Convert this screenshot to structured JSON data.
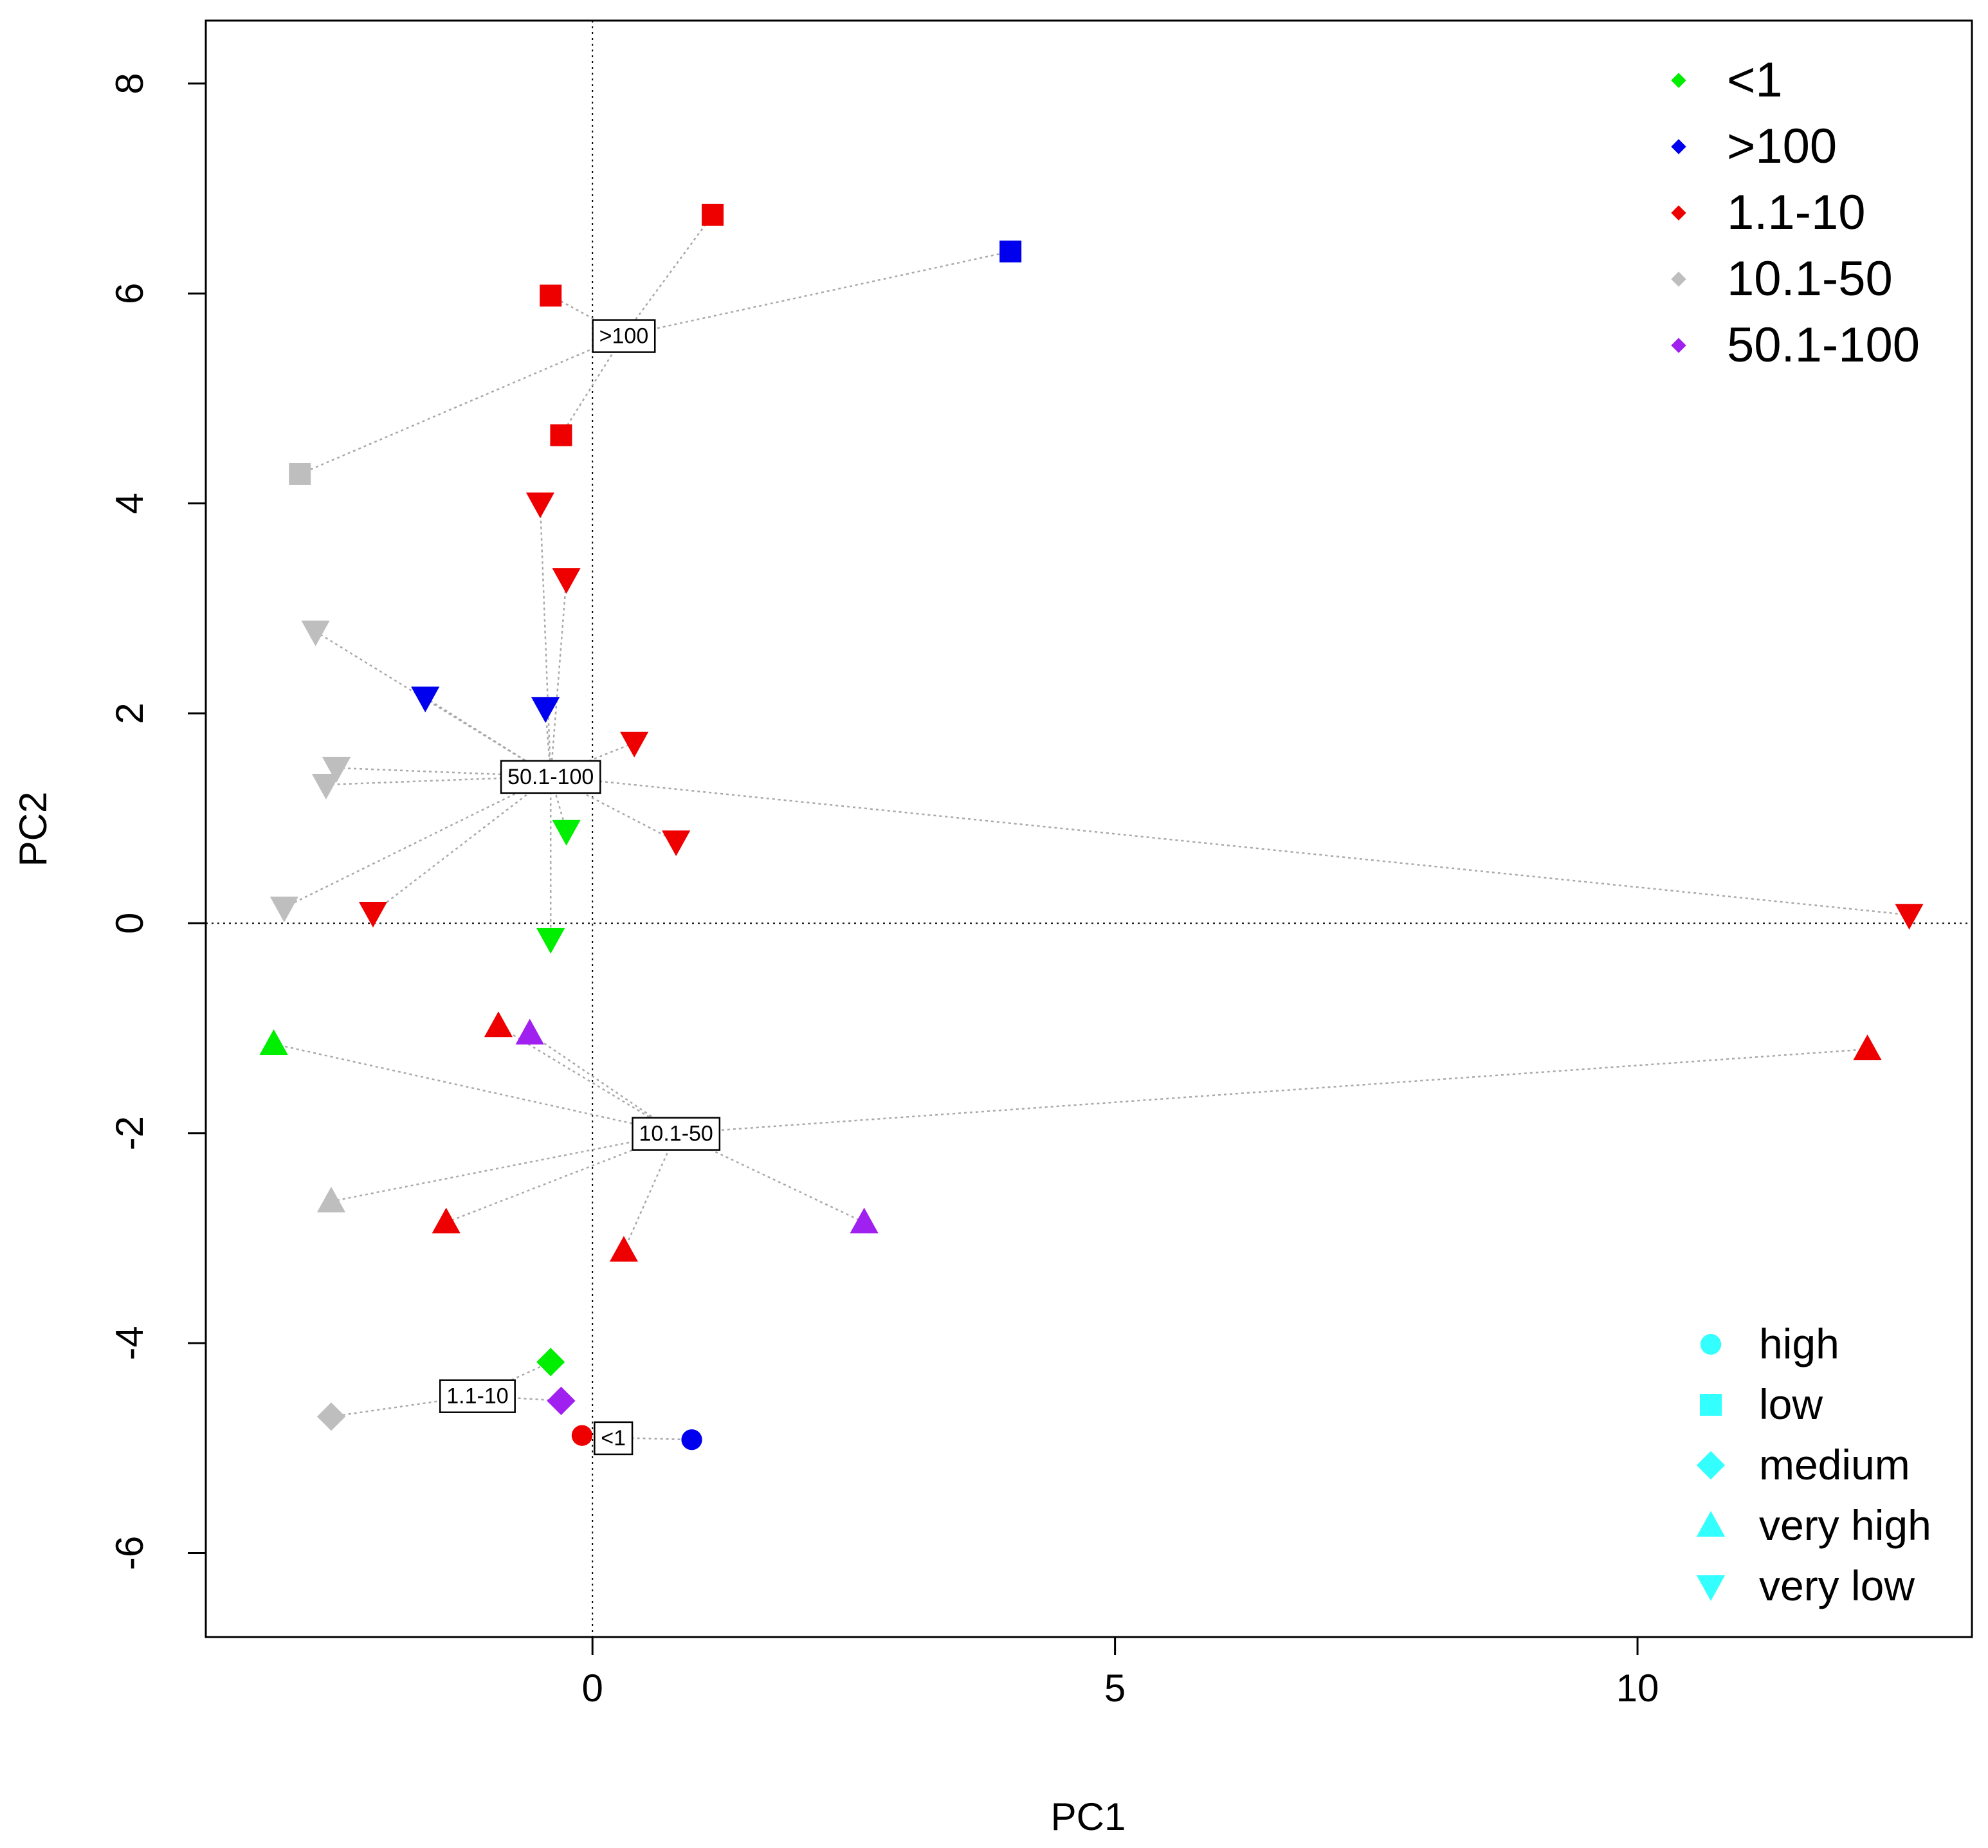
{
  "chart_data": {
    "type": "scatter",
    "title": "",
    "xlabel": "PC1",
    "ylabel": "PC2",
    "xlim": [
      -3.7,
      13.2
    ],
    "ylim": [
      -6.8,
      8.6
    ],
    "xticks": [
      0,
      5,
      10
    ],
    "yticks": [
      -6,
      -4,
      -2,
      0,
      2,
      4,
      6,
      8
    ],
    "grid": false,
    "reference_lines": {
      "x": 0,
      "y": 0
    },
    "color_legend_title": "",
    "color_legend_position": "top-right",
    "shape_legend_position": "bottom-right",
    "colors": {
      "<1": "#00ee00",
      ">100": "#0000ee",
      "1.1-10": "#ee0000",
      "10.1-50": "#bebebe",
      "50.1-100": "#a020f0"
    },
    "color_legend": [
      "<1",
      ">100",
      "1.1-10",
      "10.1-50",
      "50.1-100"
    ],
    "shape_legend": [
      {
        "label": "high",
        "shape": "circle"
      },
      {
        "label": "low",
        "shape": "square"
      },
      {
        "label": "medium",
        "shape": "diamond"
      },
      {
        "label": "very high",
        "shape": "triangle-up"
      },
      {
        "label": "very low",
        "shape": "triangle-down"
      }
    ],
    "shape_legend_color": "#33ffff",
    "connector_color": "#a9a9a9",
    "groups": [
      {
        "label": ">100",
        "center": [
          0.3,
          5.6
        ]
      },
      {
        "label": "50.1-100",
        "center": [
          -0.4,
          1.4
        ]
      },
      {
        "label": "10.1-50",
        "center": [
          0.8,
          -2.0
        ]
      },
      {
        "label": "1.1-10",
        "center": [
          -1.1,
          -4.5
        ]
      },
      {
        "label": "<1",
        "center": [
          0.2,
          -4.9
        ]
      }
    ],
    "points": [
      {
        "x": 1.15,
        "y": 6.75,
        "category": "1.1-10",
        "shape": "square",
        "group": ">100"
      },
      {
        "x": 4.0,
        "y": 6.4,
        "category": ">100",
        "shape": "square",
        "group": ">100"
      },
      {
        "x": -0.4,
        "y": 5.98,
        "category": "1.1-10",
        "shape": "square",
        "group": ">100"
      },
      {
        "x": -0.3,
        "y": 4.65,
        "category": "1.1-10",
        "shape": "square",
        "group": ">100"
      },
      {
        "x": -2.8,
        "y": 4.28,
        "category": "10.1-50",
        "shape": "square",
        "group": ">100"
      },
      {
        "x": -0.5,
        "y": 4.0,
        "category": "1.1-10",
        "shape": "triangle-down",
        "group": "50.1-100"
      },
      {
        "x": -0.25,
        "y": 3.28,
        "category": "1.1-10",
        "shape": "triangle-down",
        "group": "50.1-100"
      },
      {
        "x": -2.65,
        "y": 2.78,
        "category": "10.1-50",
        "shape": "triangle-down",
        "group": "50.1-100"
      },
      {
        "x": -1.6,
        "y": 2.15,
        "category": ">100",
        "shape": "triangle-down",
        "group": "50.1-100"
      },
      {
        "x": -0.45,
        "y": 2.05,
        "category": ">100",
        "shape": "triangle-down",
        "group": "50.1-100"
      },
      {
        "x": 0.4,
        "y": 1.72,
        "category": "1.1-10",
        "shape": "triangle-down",
        "group": "50.1-100"
      },
      {
        "x": -2.45,
        "y": 1.48,
        "category": "10.1-50",
        "shape": "triangle-down",
        "group": "50.1-100"
      },
      {
        "x": -2.55,
        "y": 1.32,
        "category": "10.1-50",
        "shape": "triangle-down",
        "group": "50.1-100"
      },
      {
        "x": -0.25,
        "y": 0.88,
        "category": "<1",
        "shape": "triangle-down",
        "group": "50.1-100"
      },
      {
        "x": 0.8,
        "y": 0.78,
        "category": "1.1-10",
        "shape": "triangle-down",
        "group": "50.1-100"
      },
      {
        "x": -2.95,
        "y": 0.15,
        "category": "10.1-50",
        "shape": "triangle-down",
        "group": "50.1-100"
      },
      {
        "x": -2.1,
        "y": 0.1,
        "category": "1.1-10",
        "shape": "triangle-down",
        "group": "50.1-100"
      },
      {
        "x": 12.6,
        "y": 0.08,
        "category": "1.1-10",
        "shape": "triangle-down",
        "group": "50.1-100"
      },
      {
        "x": -0.4,
        "y": -0.15,
        "category": "<1",
        "shape": "triangle-down",
        "group": "50.1-100"
      },
      {
        "x": -3.05,
        "y": -1.15,
        "category": "<1",
        "shape": "triangle-up",
        "group": "10.1-50"
      },
      {
        "x": 12.2,
        "y": -1.2,
        "category": "1.1-10",
        "shape": "triangle-up",
        "group": "10.1-50"
      },
      {
        "x": -0.9,
        "y": -0.98,
        "category": "1.1-10",
        "shape": "triangle-up",
        "group": "10.1-50"
      },
      {
        "x": -0.6,
        "y": -1.05,
        "category": "50.1-100",
        "shape": "triangle-up",
        "group": "10.1-50"
      },
      {
        "x": -2.5,
        "y": -2.65,
        "category": "10.1-50",
        "shape": "triangle-up",
        "group": "10.1-50"
      },
      {
        "x": -1.4,
        "y": -2.85,
        "category": "1.1-10",
        "shape": "triangle-up",
        "group": "10.1-50"
      },
      {
        "x": 2.6,
        "y": -2.85,
        "category": "50.1-100",
        "shape": "triangle-up",
        "group": "10.1-50"
      },
      {
        "x": 0.3,
        "y": -3.12,
        "category": "1.1-10",
        "shape": "triangle-up",
        "group": "10.1-50"
      },
      {
        "x": -0.4,
        "y": -4.18,
        "category": "<1",
        "shape": "diamond",
        "group": "1.1-10"
      },
      {
        "x": -0.3,
        "y": -4.55,
        "category": "50.1-100",
        "shape": "diamond",
        "group": "1.1-10"
      },
      {
        "x": -2.5,
        "y": -4.7,
        "category": "10.1-50",
        "shape": "diamond",
        "group": "1.1-10"
      },
      {
        "x": -0.1,
        "y": -4.88,
        "category": "1.1-10",
        "shape": "circle",
        "group": "<1"
      },
      {
        "x": 0.95,
        "y": -4.92,
        "category": ">100",
        "shape": "circle",
        "group": "<1"
      }
    ]
  }
}
